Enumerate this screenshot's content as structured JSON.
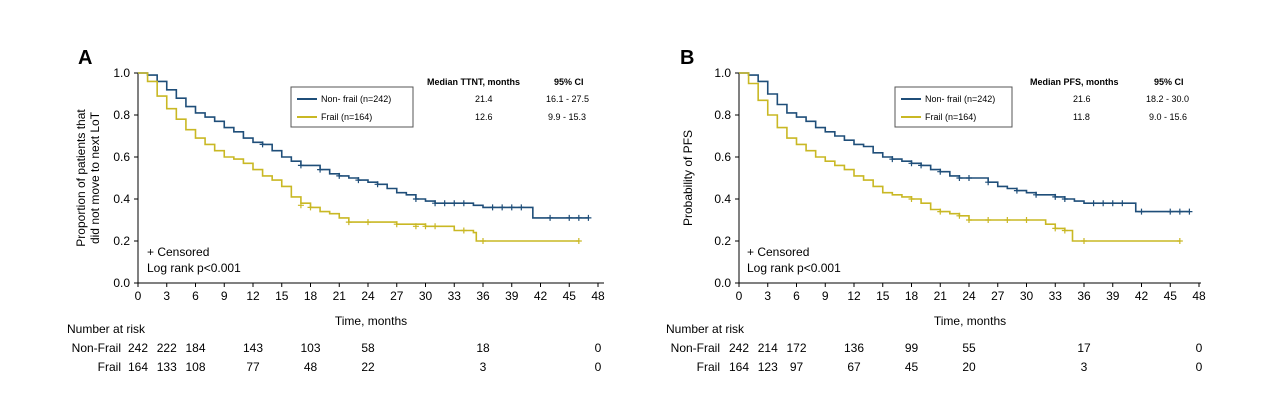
{
  "chart_data": [
    {
      "type": "line",
      "panel_label": "A",
      "xlabel": "Time, months",
      "ylabel_lines": [
        "Proportion of patients that",
        "did not move to next LoT"
      ],
      "xlim": [
        0,
        48
      ],
      "ylim": [
        0,
        1
      ],
      "xticks": [
        0,
        3,
        6,
        9,
        12,
        15,
        18,
        21,
        24,
        27,
        30,
        33,
        36,
        39,
        42,
        45,
        48
      ],
      "yticks": [
        0,
        0.2,
        0.4,
        0.6,
        0.8,
        1.0
      ],
      "ytick_labels": [
        "0.0",
        "0.2",
        "0.4",
        "0.6",
        "0.8",
        "1.0"
      ],
      "grid": false,
      "legend_position": "top-center",
      "legend_header_median": "Median TTNT, months",
      "legend_header_ci": "95% CI",
      "censor_note": "+ Censored",
      "stat_note": "Log rank p<0.001",
      "series": [
        {
          "name": "Non- frail (n=242)",
          "color": "#1f4e79",
          "median": "21.4",
          "ci": "16.1 - 27.5",
          "points": [
            [
              0,
              1.0
            ],
            [
              1,
              0.99
            ],
            [
              2,
              0.96
            ],
            [
              3,
              0.92
            ],
            [
              4,
              0.88
            ],
            [
              5,
              0.84
            ],
            [
              6,
              0.81
            ],
            [
              7,
              0.79
            ],
            [
              8,
              0.77
            ],
            [
              9,
              0.74
            ],
            [
              10,
              0.72
            ],
            [
              11,
              0.69
            ],
            [
              12,
              0.67
            ],
            [
              13,
              0.66
            ],
            [
              14,
              0.63
            ],
            [
              15,
              0.6
            ],
            [
              16,
              0.58
            ],
            [
              17,
              0.56
            ],
            [
              18,
              0.56
            ],
            [
              19,
              0.54
            ],
            [
              20,
              0.52
            ],
            [
              21,
              0.51
            ],
            [
              22,
              0.5
            ],
            [
              23,
              0.49
            ],
            [
              24,
              0.48
            ],
            [
              25,
              0.47
            ],
            [
              26,
              0.45
            ],
            [
              27,
              0.43
            ],
            [
              28,
              0.42
            ],
            [
              29,
              0.4
            ],
            [
              30,
              0.39
            ],
            [
              31,
              0.38
            ],
            [
              33,
              0.38
            ],
            [
              35,
              0.37
            ],
            [
              36,
              0.36
            ],
            [
              38,
              0.36
            ],
            [
              41,
              0.36
            ],
            [
              41.2,
              0.31
            ],
            [
              47,
              0.31
            ]
          ],
          "censored": [
            [
              13,
              0.66
            ],
            [
              17,
              0.56
            ],
            [
              19,
              0.54
            ],
            [
              21,
              0.51
            ],
            [
              23,
              0.49
            ],
            [
              25,
              0.47
            ],
            [
              29,
              0.4
            ],
            [
              31,
              0.38
            ],
            [
              32,
              0.38
            ],
            [
              33,
              0.38
            ],
            [
              34,
              0.38
            ],
            [
              37,
              0.36
            ],
            [
              38,
              0.36
            ],
            [
              39,
              0.36
            ],
            [
              40,
              0.36
            ],
            [
              43,
              0.31
            ],
            [
              45,
              0.31
            ],
            [
              46,
              0.31
            ],
            [
              47,
              0.31
            ]
          ]
        },
        {
          "name": "Frail (n=164)",
          "color": "#c9b824",
          "median": "12.6",
          "ci": "9.9 - 15.3",
          "points": [
            [
              0,
              1.0
            ],
            [
              1,
              0.96
            ],
            [
              2,
              0.89
            ],
            [
              3,
              0.83
            ],
            [
              4,
              0.78
            ],
            [
              5,
              0.73
            ],
            [
              6,
              0.69
            ],
            [
              7,
              0.66
            ],
            [
              8,
              0.63
            ],
            [
              9,
              0.6
            ],
            [
              10,
              0.59
            ],
            [
              11,
              0.57
            ],
            [
              12,
              0.54
            ],
            [
              13,
              0.51
            ],
            [
              14,
              0.49
            ],
            [
              15,
              0.46
            ],
            [
              16,
              0.41
            ],
            [
              17,
              0.38
            ],
            [
              18,
              0.36
            ],
            [
              19,
              0.34
            ],
            [
              20,
              0.33
            ],
            [
              21,
              0.31
            ],
            [
              22,
              0.29
            ],
            [
              24,
              0.29
            ],
            [
              27,
              0.28
            ],
            [
              30,
              0.27
            ],
            [
              32,
              0.27
            ],
            [
              33,
              0.25
            ],
            [
              35,
              0.24
            ],
            [
              35.3,
              0.2
            ],
            [
              46,
              0.2
            ]
          ],
          "censored": [
            [
              17,
              0.37
            ],
            [
              18,
              0.36
            ],
            [
              22,
              0.29
            ],
            [
              24,
              0.29
            ],
            [
              27,
              0.28
            ],
            [
              29,
              0.27
            ],
            [
              30,
              0.27
            ],
            [
              31,
              0.27
            ],
            [
              34,
              0.25
            ],
            [
              36,
              0.2
            ],
            [
              46,
              0.2
            ]
          ]
        }
      ],
      "risk_table": {
        "title": "Number at risk",
        "timepoints": [
          0,
          3,
          6,
          12,
          18,
          24,
          36,
          48
        ],
        "rows": [
          {
            "label": "Non-Frail",
            "values": [
              "242",
              "222",
              "184",
              "143",
              "103",
              "58",
              "18",
              "0"
            ]
          },
          {
            "label": "Frail",
            "values": [
              "164",
              "133",
              "108",
              "77",
              "48",
              "22",
              "3",
              "0"
            ]
          }
        ]
      }
    },
    {
      "type": "line",
      "panel_label": "B",
      "xlabel": "Time, months",
      "ylabel_lines": [
        "Probability of PFS"
      ],
      "xlim": [
        0,
        48
      ],
      "ylim": [
        0,
        1
      ],
      "xticks": [
        0,
        3,
        6,
        9,
        12,
        15,
        18,
        21,
        24,
        27,
        30,
        33,
        36,
        39,
        42,
        45,
        48
      ],
      "yticks": [
        0,
        0.2,
        0.4,
        0.6,
        0.8,
        1.0
      ],
      "ytick_labels": [
        "0.0",
        "0.2",
        "0.4",
        "0.6",
        "0.8",
        "1.0"
      ],
      "grid": false,
      "legend_position": "top-center",
      "legend_header_median": "Median PFS, months",
      "legend_header_ci": "95% CI",
      "censor_note": "+ Censored",
      "stat_note": "Log rank p<0.001",
      "series": [
        {
          "name": "Non- frail (n=242)",
          "color": "#1f4e79",
          "median": "21.6",
          "ci": "18.2 - 30.0",
          "points": [
            [
              0,
              1.0
            ],
            [
              1,
              0.99
            ],
            [
              2,
              0.96
            ],
            [
              3,
              0.9
            ],
            [
              4,
              0.85
            ],
            [
              5,
              0.81
            ],
            [
              6,
              0.79
            ],
            [
              7,
              0.77
            ],
            [
              8,
              0.74
            ],
            [
              9,
              0.72
            ],
            [
              10,
              0.7
            ],
            [
              11,
              0.68
            ],
            [
              12,
              0.66
            ],
            [
              13,
              0.65
            ],
            [
              14,
              0.62
            ],
            [
              15,
              0.6
            ],
            [
              16,
              0.59
            ],
            [
              17,
              0.58
            ],
            [
              18,
              0.57
            ],
            [
              19,
              0.56
            ],
            [
              20,
              0.54
            ],
            [
              21,
              0.53
            ],
            [
              22,
              0.51
            ],
            [
              23,
              0.5
            ],
            [
              25,
              0.5
            ],
            [
              26,
              0.48
            ],
            [
              27,
              0.46
            ],
            [
              28,
              0.45
            ],
            [
              29,
              0.44
            ],
            [
              30,
              0.43
            ],
            [
              31,
              0.42
            ],
            [
              33,
              0.41
            ],
            [
              34,
              0.4
            ],
            [
              35,
              0.39
            ],
            [
              36,
              0.38
            ],
            [
              41,
              0.38
            ],
            [
              41.4,
              0.34
            ],
            [
              47,
              0.34
            ]
          ],
          "censored": [
            [
              16,
              0.59
            ],
            [
              18,
              0.57
            ],
            [
              19,
              0.56
            ],
            [
              21,
              0.53
            ],
            [
              23,
              0.5
            ],
            [
              24,
              0.5
            ],
            [
              26,
              0.48
            ],
            [
              29,
              0.44
            ],
            [
              31,
              0.42
            ],
            [
              33,
              0.41
            ],
            [
              34,
              0.4
            ],
            [
              37,
              0.38
            ],
            [
              38,
              0.38
            ],
            [
              39,
              0.38
            ],
            [
              40,
              0.38
            ],
            [
              42,
              0.34
            ],
            [
              45,
              0.34
            ],
            [
              46,
              0.34
            ],
            [
              47,
              0.34
            ]
          ]
        },
        {
          "name": "Frail (n=164)",
          "color": "#c9b824",
          "median": "11.8",
          "ci": "9.0 - 15.6",
          "points": [
            [
              0,
              1.0
            ],
            [
              1,
              0.95
            ],
            [
              2,
              0.87
            ],
            [
              3,
              0.8
            ],
            [
              4,
              0.74
            ],
            [
              5,
              0.69
            ],
            [
              6,
              0.66
            ],
            [
              7,
              0.63
            ],
            [
              8,
              0.6
            ],
            [
              9,
              0.58
            ],
            [
              10,
              0.56
            ],
            [
              11,
              0.54
            ],
            [
              12,
              0.51
            ],
            [
              13,
              0.49
            ],
            [
              14,
              0.46
            ],
            [
              15,
              0.43
            ],
            [
              16,
              0.42
            ],
            [
              17,
              0.41
            ],
            [
              18,
              0.4
            ],
            [
              19,
              0.38
            ],
            [
              20,
              0.35
            ],
            [
              21,
              0.34
            ],
            [
              22,
              0.33
            ],
            [
              23,
              0.32
            ],
            [
              24,
              0.3
            ],
            [
              30,
              0.3
            ],
            [
              32,
              0.28
            ],
            [
              33,
              0.26
            ],
            [
              34,
              0.25
            ],
            [
              34.8,
              0.2
            ],
            [
              46,
              0.2
            ]
          ],
          "censored": [
            [
              18,
              0.4
            ],
            [
              21,
              0.34
            ],
            [
              23,
              0.32
            ],
            [
              24,
              0.3
            ],
            [
              26,
              0.3
            ],
            [
              28,
              0.3
            ],
            [
              30,
              0.3
            ],
            [
              33,
              0.26
            ],
            [
              34,
              0.25
            ],
            [
              36,
              0.2
            ],
            [
              46,
              0.2
            ]
          ]
        }
      ],
      "risk_table": {
        "title": "Number at risk",
        "timepoints": [
          0,
          3,
          6,
          12,
          18,
          24,
          36,
          48
        ],
        "rows": [
          {
            "label": "Non-Frail",
            "values": [
              "242",
              "214",
              "172",
              "136",
              "99",
              "55",
              "17",
              "0"
            ]
          },
          {
            "label": "Frail",
            "values": [
              "164",
              "123",
              "97",
              "67",
              "45",
              "20",
              "3",
              "0"
            ]
          }
        ]
      }
    }
  ]
}
